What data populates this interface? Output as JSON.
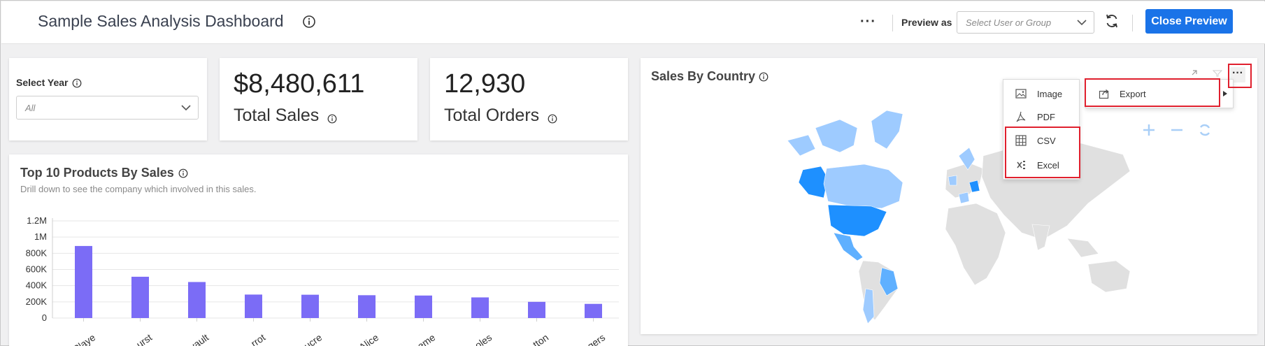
{
  "header": {
    "title": "Sample Sales Analysis Dashboard",
    "preview_label": "Preview as",
    "user_select_placeholder": "Select User or Group",
    "close_preview_label": "Close Preview",
    "more_label": "···"
  },
  "select_year": {
    "label": "Select Year",
    "placeholder": "All"
  },
  "kpis": [
    {
      "value": "$8,480,611",
      "label": "Total Sales"
    },
    {
      "value": "12,930",
      "label": "Total Orders"
    }
  ],
  "top_products": {
    "title": "Top 10 Products By Sales",
    "subtitle": "Drill down to see the company which involved in this sales."
  },
  "sales_by_country": {
    "title": "Sales By Country",
    "more_label": "···"
  },
  "export_menu": {
    "items": [
      {
        "label": "Image",
        "icon": "image-icon"
      },
      {
        "label": "PDF",
        "icon": "pdf-icon"
      },
      {
        "label": "CSV",
        "icon": "csv-icon"
      },
      {
        "label": "Excel",
        "icon": "excel-icon"
      }
    ],
    "export_label": "Export"
  },
  "colors": {
    "accent": "#1a73e8",
    "bar": "#7b6cf6",
    "highlight": "#e0202e",
    "map_dark": "#1e90ff",
    "map_mid": "#5fb0ff",
    "map_light": "#9ecbff",
    "map_land": "#e0e0e0"
  },
  "chart_data": {
    "type": "bar",
    "title": "Top 10 Products By Sales",
    "categories": [
      "Playe",
      "urst",
      "vault",
      "rrot",
      "ucre",
      "Alice",
      "eme",
      "oles",
      "tton",
      "gers"
    ],
    "values": [
      890000,
      510000,
      445000,
      290000,
      288000,
      282000,
      278000,
      255000,
      200000,
      175000
    ],
    "ytick_labels": [
      "0",
      "200K",
      "400K",
      "600K",
      "800K",
      "1M",
      "1.2M"
    ],
    "ytick_values": [
      0,
      200000,
      400000,
      600000,
      800000,
      1000000,
      1200000
    ],
    "ylim": [
      0,
      1200000
    ],
    "grid": true
  }
}
